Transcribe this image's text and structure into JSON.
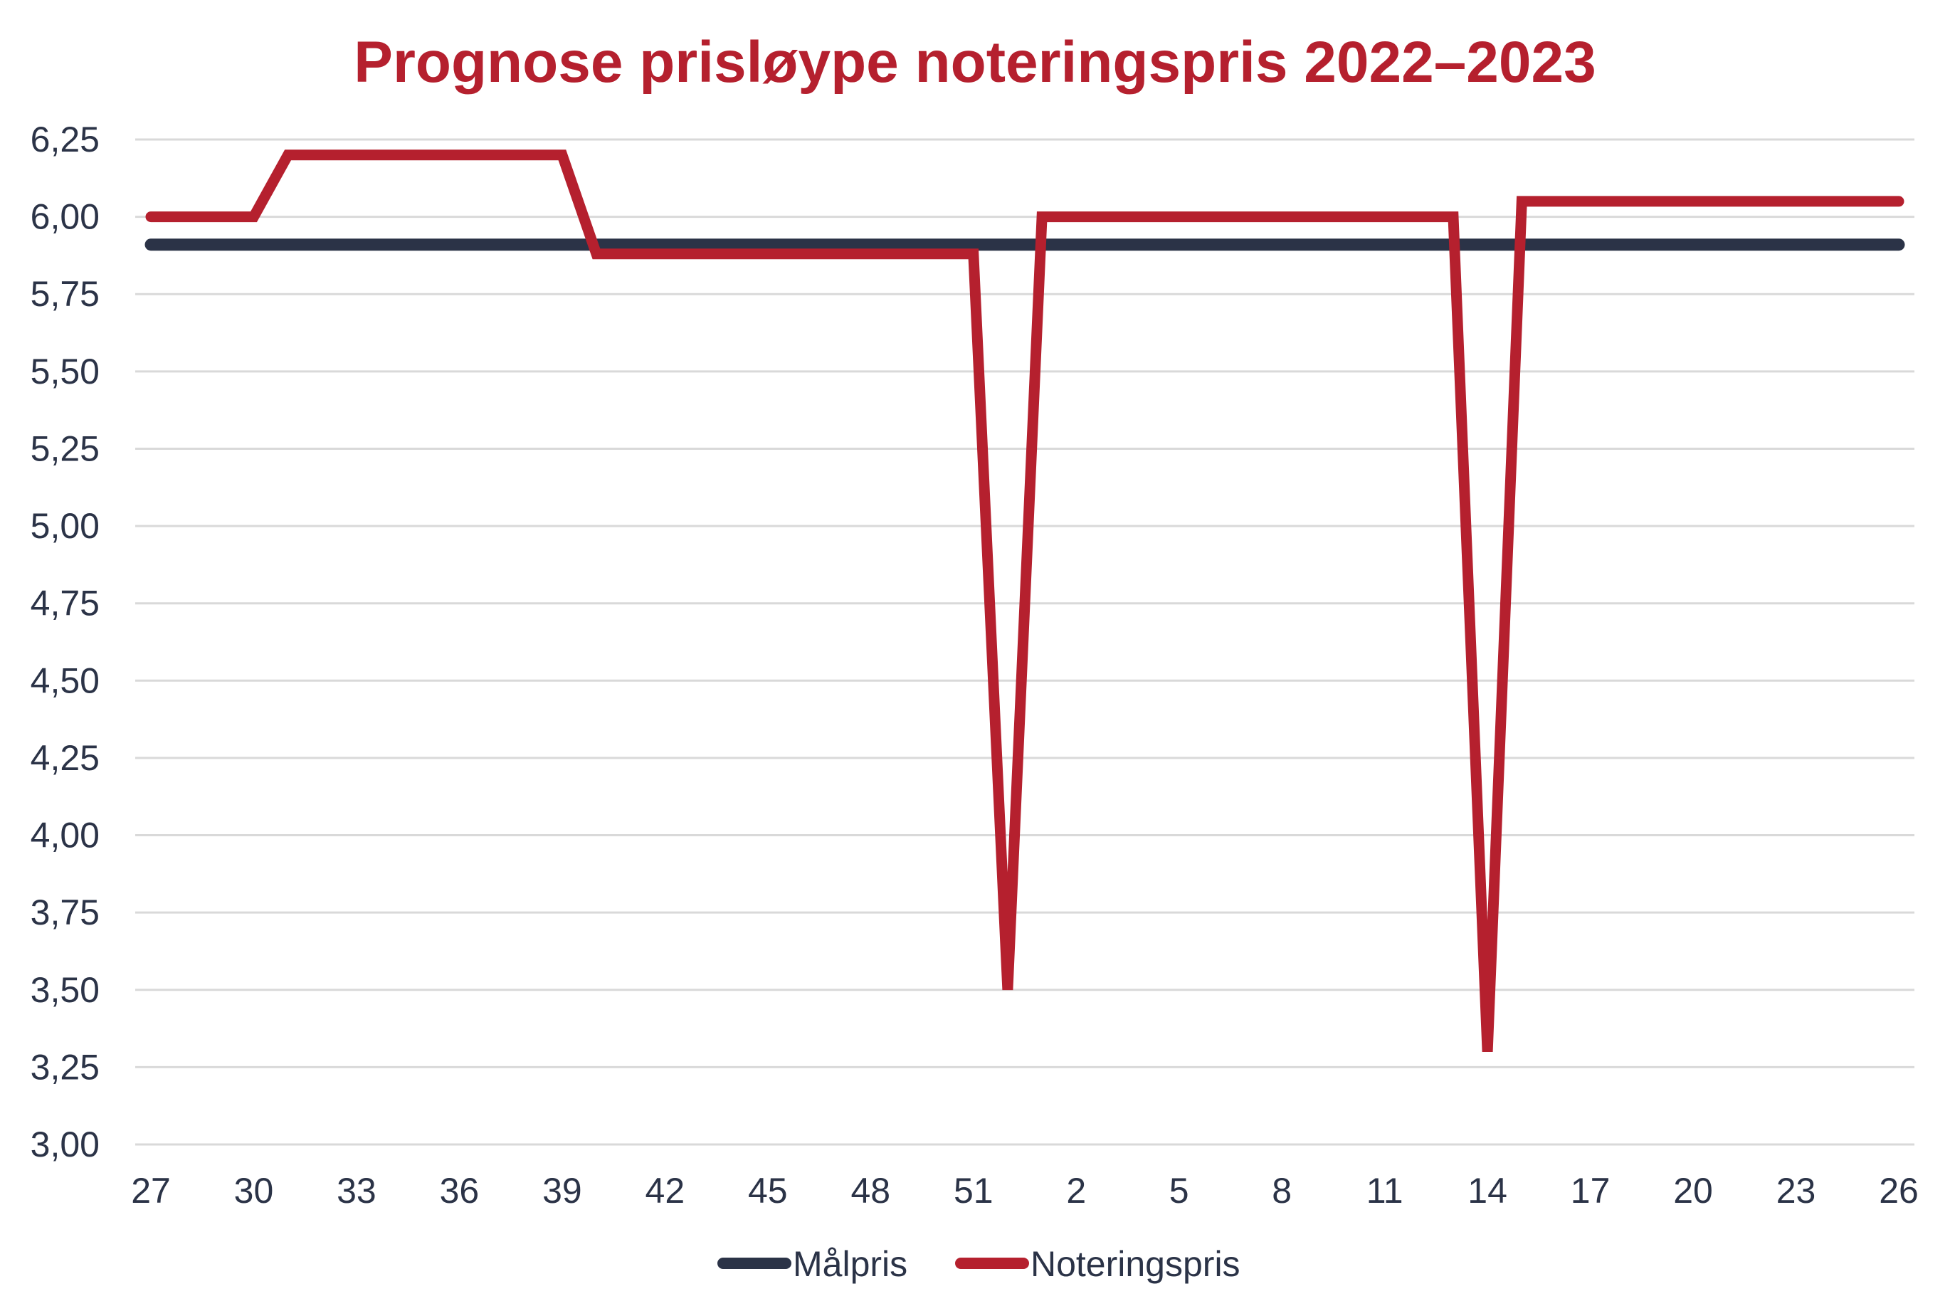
{
  "chart_data": {
    "type": "line",
    "title": "Prognose prisløype noteringspris 2022–2023",
    "xlabel": "",
    "ylabel": "",
    "x": [
      27,
      28,
      29,
      30,
      31,
      32,
      33,
      34,
      35,
      36,
      37,
      38,
      39,
      40,
      41,
      42,
      43,
      44,
      45,
      46,
      47,
      48,
      49,
      50,
      51,
      52,
      1,
      2,
      3,
      4,
      5,
      6,
      7,
      8,
      9,
      10,
      11,
      12,
      13,
      14,
      15,
      16,
      17,
      18,
      19,
      20,
      21,
      22,
      23,
      24,
      25,
      26
    ],
    "x_tick_labels": [
      "27",
      "30",
      "33",
      "36",
      "39",
      "42",
      "45",
      "48",
      "51",
      "2",
      "5",
      "8",
      "11",
      "14",
      "17",
      "20",
      "23",
      "26"
    ],
    "y_tick_labels": [
      "3,00",
      "3,25",
      "3,50",
      "3,75",
      "4,00",
      "4,25",
      "4,50",
      "4,75",
      "5,00",
      "5,25",
      "5,50",
      "5,75",
      "6,00",
      "6,25"
    ],
    "ylim": [
      3.0,
      6.25
    ],
    "grid": "horizontal",
    "legend_position": "bottom",
    "series": [
      {
        "name": "Målpris",
        "color": "#2b3347",
        "values": [
          5.91,
          5.91,
          5.91,
          5.91,
          5.91,
          5.91,
          5.91,
          5.91,
          5.91,
          5.91,
          5.91,
          5.91,
          5.91,
          5.91,
          5.91,
          5.91,
          5.91,
          5.91,
          5.91,
          5.91,
          5.91,
          5.91,
          5.91,
          5.91,
          5.91,
          5.91,
          5.91,
          5.91,
          5.91,
          5.91,
          5.91,
          5.91,
          5.91,
          5.91,
          5.91,
          5.91,
          5.91,
          5.91,
          5.91,
          5.91,
          5.91,
          5.91,
          5.91,
          5.91,
          5.91,
          5.91,
          5.91,
          5.91,
          5.91,
          5.91,
          5.91,
          5.91
        ]
      },
      {
        "name": "Noteringspris",
        "color": "#b5202e",
        "values": [
          6.0,
          6.0,
          6.0,
          6.0,
          6.2,
          6.2,
          6.2,
          6.2,
          6.2,
          6.2,
          6.2,
          6.2,
          6.2,
          5.88,
          5.88,
          5.88,
          5.88,
          5.88,
          5.88,
          5.88,
          5.88,
          5.88,
          5.88,
          5.88,
          5.88,
          3.5,
          6.0,
          6.0,
          6.0,
          6.0,
          6.0,
          6.0,
          6.0,
          6.0,
          6.0,
          6.0,
          6.0,
          6.0,
          6.0,
          3.3,
          6.05,
          6.05,
          6.05,
          6.05,
          6.05,
          6.05,
          6.05,
          6.05,
          6.05,
          6.05,
          6.05,
          6.05
        ]
      }
    ]
  },
  "colors": {
    "title": "#b5202e",
    "axis_text": "#2b3347",
    "grid": "#d9d9d9"
  }
}
